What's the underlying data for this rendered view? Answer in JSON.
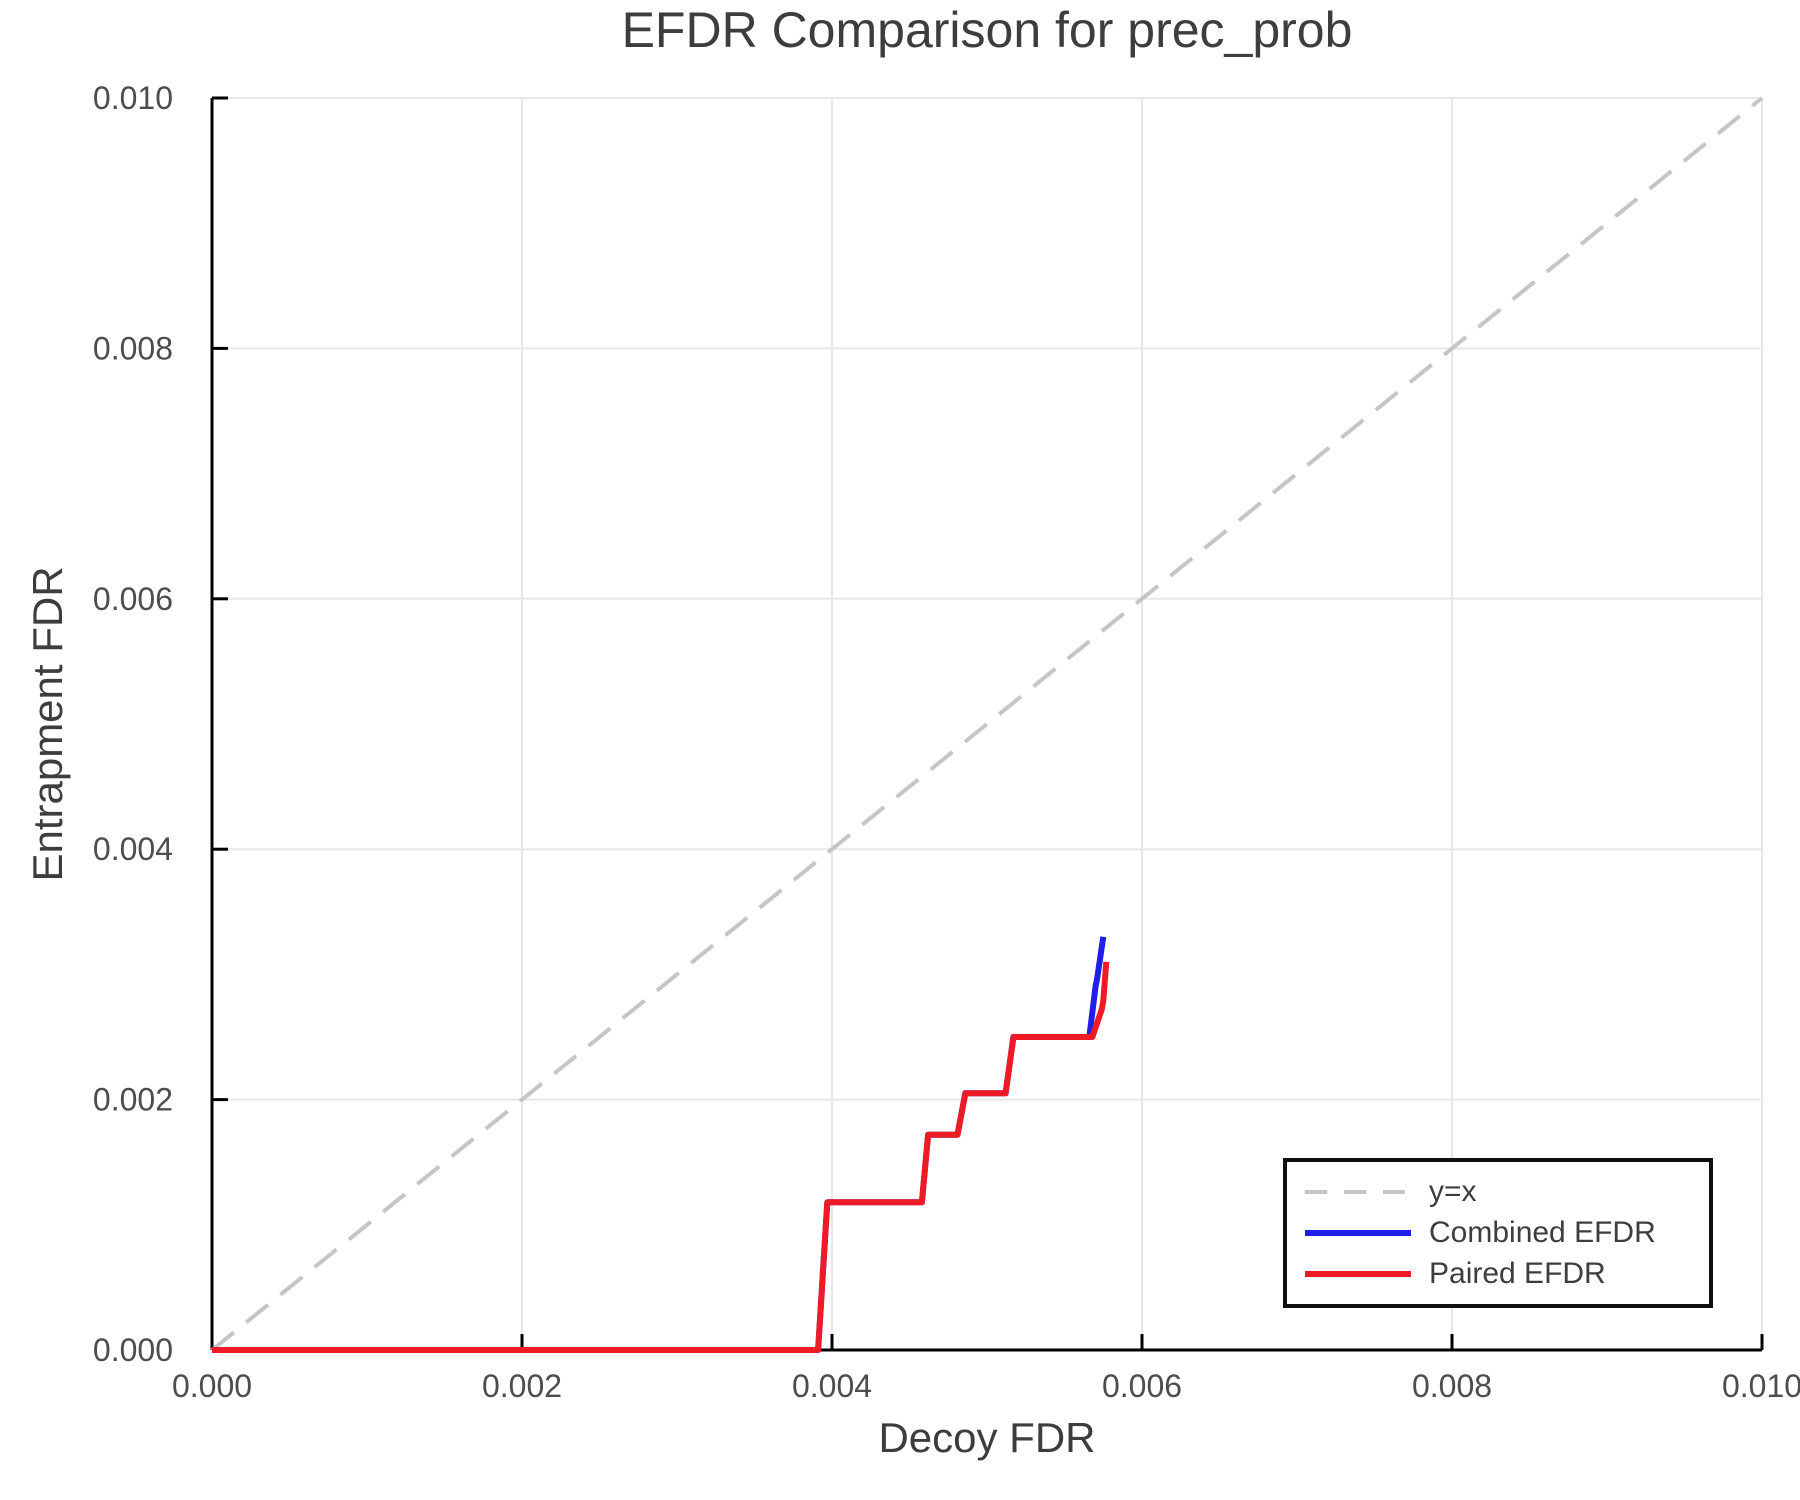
{
  "chart_data": {
    "type": "line",
    "title": "EFDR Comparison for prec_prob",
    "xlabel": "Decoy FDR",
    "ylabel": "Entrapment FDR",
    "xlim": [
      0.0,
      0.01
    ],
    "ylim": [
      0.0,
      0.01
    ],
    "x_ticks": [
      0.0,
      0.002,
      0.004,
      0.006,
      0.008,
      0.01
    ],
    "x_tick_labels": [
      "0.000",
      "0.002",
      "0.004",
      "0.006",
      "0.008",
      "0.010"
    ],
    "y_ticks": [
      0.0,
      0.002,
      0.004,
      0.006,
      0.008,
      0.01
    ],
    "y_tick_labels": [
      "0.000",
      "0.002",
      "0.004",
      "0.006",
      "0.008",
      "0.010"
    ],
    "grid": true,
    "grid_color": "#e7e7e7",
    "axis_color": "#000000",
    "tick_label_color": "#4d4d4d",
    "text_color": "#3d3d3d",
    "legend": {
      "position": "lower right",
      "border_color": "#111111",
      "background": "#ffffff"
    },
    "series": [
      {
        "name": "y=x",
        "color": "#c5c5c5",
        "style": "dashed",
        "width": 4,
        "points": [
          [
            0.0,
            0.0
          ],
          [
            0.01,
            0.01
          ]
        ]
      },
      {
        "name": "Combined EFDR",
        "color": "#1f1fe8",
        "style": "solid",
        "width": 6,
        "points": [
          [
            0.0,
            0.0
          ],
          [
            0.00391,
            0.0
          ],
          [
            0.00397,
            0.00118
          ],
          [
            0.00458,
            0.00118
          ],
          [
            0.00462,
            0.00172
          ],
          [
            0.00481,
            0.00172
          ],
          [
            0.00486,
            0.00205
          ],
          [
            0.00512,
            0.00205
          ],
          [
            0.00517,
            0.0025
          ],
          [
            0.00566,
            0.0025
          ],
          [
            0.0057,
            0.0029
          ],
          [
            0.00571,
            0.00296
          ],
          [
            0.00575,
            0.0033
          ]
        ]
      },
      {
        "name": "Paired EFDR",
        "color": "#ee1b26",
        "style": "solid",
        "width": 6,
        "points": [
          [
            0.0,
            0.0
          ],
          [
            0.00391,
            0.0
          ],
          [
            0.00397,
            0.00118
          ],
          [
            0.00458,
            0.00118
          ],
          [
            0.00462,
            0.00172
          ],
          [
            0.00481,
            0.00172
          ],
          [
            0.00486,
            0.00205
          ],
          [
            0.00512,
            0.00205
          ],
          [
            0.00517,
            0.0025
          ],
          [
            0.00568,
            0.0025
          ],
          [
            0.00574,
            0.00272
          ],
          [
            0.00575,
            0.00279
          ],
          [
            0.00577,
            0.0031
          ]
        ]
      }
    ]
  }
}
